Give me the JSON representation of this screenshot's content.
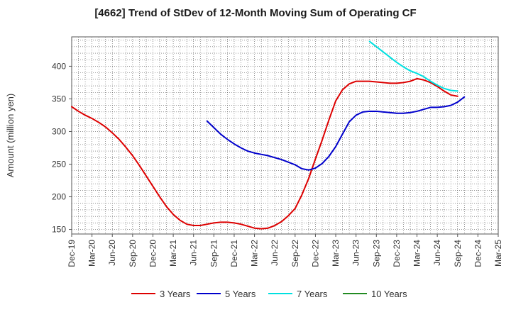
{
  "chart_data": {
    "type": "line",
    "title": "[4662]  Trend of StDev of 12-Month Moving Sum of Operating CF",
    "xlabel": "",
    "ylabel": "Amount (million yen)",
    "ylim": [
      143,
      445
    ],
    "yticks": [
      150,
      200,
      250,
      300,
      350,
      400
    ],
    "x_ticks": [
      "Dec-19",
      "Mar-20",
      "Jun-20",
      "Sep-20",
      "Dec-20",
      "Mar-21",
      "Jun-21",
      "Sep-21",
      "Dec-21",
      "Mar-22",
      "Jun-22",
      "Sep-22",
      "Dec-22",
      "Mar-23",
      "Jun-23",
      "Sep-23",
      "Dec-23",
      "Mar-24",
      "Jun-24",
      "Sep-24",
      "Dec-24",
      "Mar-25"
    ],
    "grid": true,
    "legend_position": "bottom",
    "series": [
      {
        "name": "3 Years",
        "color": "#dd0000",
        "points": [
          [
            "2019-12",
            338
          ],
          [
            "2020-01",
            331
          ],
          [
            "2020-02",
            325
          ],
          [
            "2020-03",
            320
          ],
          [
            "2020-04",
            314
          ],
          [
            "2020-05",
            307
          ],
          [
            "2020-06",
            298
          ],
          [
            "2020-07",
            288
          ],
          [
            "2020-08",
            276
          ],
          [
            "2020-09",
            263
          ],
          [
            "2020-10",
            248
          ],
          [
            "2020-11",
            232
          ],
          [
            "2020-12",
            216
          ],
          [
            "2021-01",
            200
          ],
          [
            "2021-02",
            185
          ],
          [
            "2021-03",
            173
          ],
          [
            "2021-04",
            164
          ],
          [
            "2021-05",
            158
          ],
          [
            "2021-06",
            156
          ],
          [
            "2021-07",
            156
          ],
          [
            "2021-08",
            158
          ],
          [
            "2021-09",
            160
          ],
          [
            "2021-10",
            161
          ],
          [
            "2021-11",
            161
          ],
          [
            "2021-12",
            160
          ],
          [
            "2022-01",
            158
          ],
          [
            "2022-02",
            155
          ],
          [
            "2022-03",
            152
          ],
          [
            "2022-04",
            151
          ],
          [
            "2022-05",
            152
          ],
          [
            "2022-06",
            156
          ],
          [
            "2022-07",
            162
          ],
          [
            "2022-08",
            171
          ],
          [
            "2022-09",
            182
          ],
          [
            "2022-10",
            203
          ],
          [
            "2022-11",
            228
          ],
          [
            "2022-12",
            258
          ],
          [
            "2023-01",
            287
          ],
          [
            "2023-02",
            318
          ],
          [
            "2023-03",
            347
          ],
          [
            "2023-04",
            364
          ],
          [
            "2023-05",
            373
          ],
          [
            "2023-06",
            377
          ],
          [
            "2023-07",
            377
          ],
          [
            "2023-08",
            377
          ],
          [
            "2023-09",
            376
          ],
          [
            "2023-10",
            375
          ],
          [
            "2023-11",
            374
          ],
          [
            "2023-12",
            374
          ],
          [
            "2024-01",
            375
          ],
          [
            "2024-02",
            377
          ],
          [
            "2024-03",
            381
          ],
          [
            "2024-04",
            379
          ],
          [
            "2024-05",
            375
          ],
          [
            "2024-06",
            369
          ],
          [
            "2024-07",
            362
          ],
          [
            "2024-08",
            356
          ],
          [
            "2024-09",
            354
          ]
        ]
      },
      {
        "name": "5 Years",
        "color": "#0000cc",
        "points": [
          [
            "2021-08",
            316
          ],
          [
            "2021-09",
            306
          ],
          [
            "2021-10",
            296
          ],
          [
            "2021-11",
            288
          ],
          [
            "2021-12",
            281
          ],
          [
            "2022-01",
            275
          ],
          [
            "2022-02",
            270
          ],
          [
            "2022-03",
            267
          ],
          [
            "2022-04",
            265
          ],
          [
            "2022-05",
            263
          ],
          [
            "2022-06",
            260
          ],
          [
            "2022-07",
            257
          ],
          [
            "2022-08",
            253
          ],
          [
            "2022-09",
            249
          ],
          [
            "2022-10",
            243
          ],
          [
            "2022-11",
            241
          ],
          [
            "2022-12",
            244
          ],
          [
            "2023-01",
            251
          ],
          [
            "2023-02",
            262
          ],
          [
            "2023-03",
            277
          ],
          [
            "2023-04",
            296
          ],
          [
            "2023-05",
            315
          ],
          [
            "2023-06",
            325
          ],
          [
            "2023-07",
            330
          ],
          [
            "2023-08",
            331
          ],
          [
            "2023-09",
            331
          ],
          [
            "2023-10",
            330
          ],
          [
            "2023-11",
            329
          ],
          [
            "2023-12",
            328
          ],
          [
            "2024-01",
            328
          ],
          [
            "2024-02",
            329
          ],
          [
            "2024-03",
            331
          ],
          [
            "2024-04",
            334
          ],
          [
            "2024-05",
            337
          ],
          [
            "2024-06",
            337
          ],
          [
            "2024-07",
            338
          ],
          [
            "2024-08",
            340
          ],
          [
            "2024-09",
            345
          ],
          [
            "2024-10",
            353
          ]
        ]
      },
      {
        "name": "7 Years",
        "color": "#00e0e0",
        "points": [
          [
            "2023-08",
            438
          ],
          [
            "2023-09",
            430
          ],
          [
            "2023-10",
            422
          ],
          [
            "2023-11",
            414
          ],
          [
            "2023-12",
            406
          ],
          [
            "2024-01",
            399
          ],
          [
            "2024-02",
            393
          ],
          [
            "2024-03",
            389
          ],
          [
            "2024-04",
            384
          ],
          [
            "2024-05",
            377
          ],
          [
            "2024-06",
            371
          ],
          [
            "2024-07",
            366
          ],
          [
            "2024-08",
            363
          ],
          [
            "2024-09",
            362
          ]
        ]
      },
      {
        "name": "10 Years",
        "color": "#228b22",
        "points": []
      }
    ]
  }
}
